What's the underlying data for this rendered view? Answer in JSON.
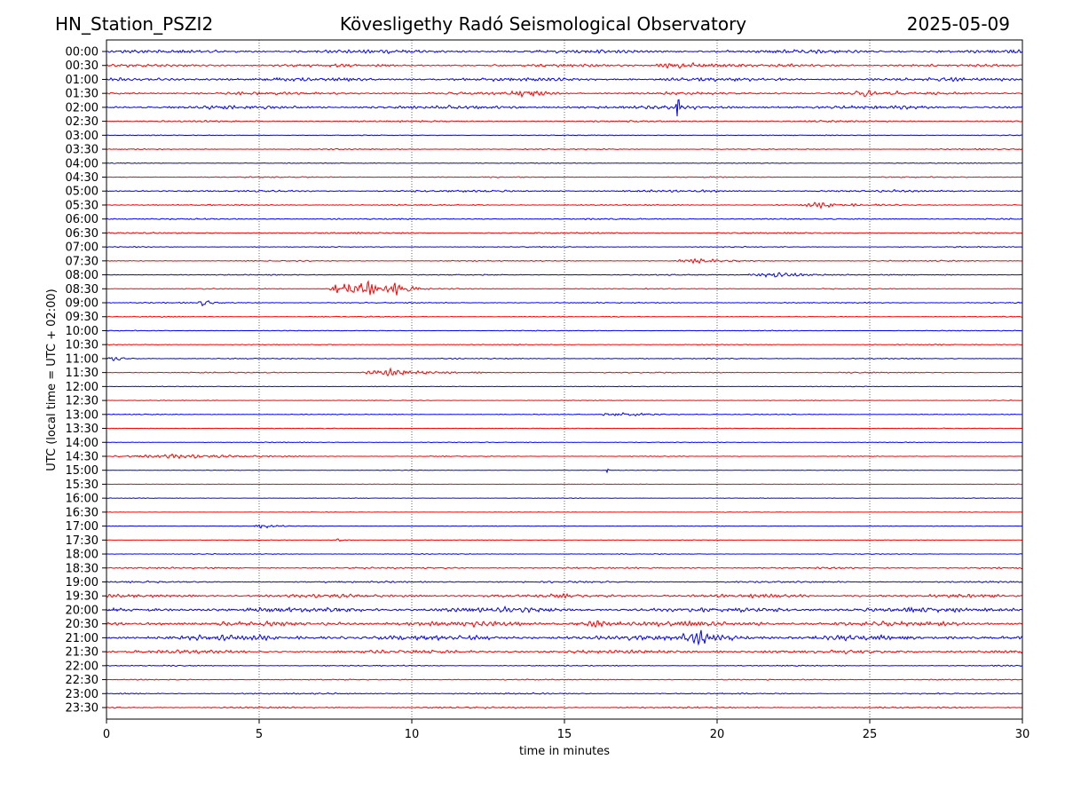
{
  "header": {
    "station": "HN_Station_PSZI2",
    "observatory": "Kövesligethy Radó Seismological Observatory",
    "date": "2025-05-09"
  },
  "chart_data": {
    "type": "line",
    "subtype": "helicorder",
    "xlabel": "time in minutes",
    "ylabel": "UTC (local time = UTC + 02:00)",
    "xlim": [
      0,
      30
    ],
    "xticks": [
      "0",
      "5",
      "10",
      "15",
      "20",
      "25",
      "30"
    ],
    "grid": "vertical dotted at 5-minute ticks",
    "colors": [
      "#0000ff",
      "#ff0000"
    ],
    "rows": [
      {
        "label": "00:00",
        "noise": 2.5
      },
      {
        "label": "00:30",
        "noise": 2.0
      },
      {
        "label": "01:00",
        "noise": 2.5
      },
      {
        "label": "01:30",
        "noise": 2.0
      },
      {
        "label": "02:00",
        "noise": 2.5
      },
      {
        "label": "02:30",
        "noise": 1.2
      },
      {
        "label": "03:00",
        "noise": 0.6
      },
      {
        "label": "03:30",
        "noise": 0.8
      },
      {
        "label": "04:00",
        "noise": 0.6
      },
      {
        "label": "04:30",
        "noise": 0.8
      },
      {
        "label": "05:00",
        "noise": 1.5
      },
      {
        "label": "05:30",
        "noise": 1.0
      },
      {
        "label": "06:00",
        "noise": 1.0
      },
      {
        "label": "06:30",
        "noise": 1.0
      },
      {
        "label": "07:00",
        "noise": 0.7
      },
      {
        "label": "07:30",
        "noise": 0.8
      },
      {
        "label": "08:00",
        "noise": 0.8
      },
      {
        "label": "08:30",
        "noise": 0.7
      },
      {
        "label": "09:00",
        "noise": 0.8
      },
      {
        "label": "09:30",
        "noise": 0.7
      },
      {
        "label": "10:00",
        "noise": 0.6
      },
      {
        "label": "10:30",
        "noise": 0.6
      },
      {
        "label": "11:00",
        "noise": 0.8
      },
      {
        "label": "11:30",
        "noise": 0.8
      },
      {
        "label": "12:00",
        "noise": 0.5
      },
      {
        "label": "12:30",
        "noise": 0.5
      },
      {
        "label": "13:00",
        "noise": 0.6
      },
      {
        "label": "13:30",
        "noise": 0.5
      },
      {
        "label": "14:00",
        "noise": 0.5
      },
      {
        "label": "14:30",
        "noise": 0.6
      },
      {
        "label": "15:00",
        "noise": 0.4
      },
      {
        "label": "15:30",
        "noise": 0.4
      },
      {
        "label": "16:00",
        "noise": 0.4
      },
      {
        "label": "16:30",
        "noise": 0.4
      },
      {
        "label": "17:00",
        "noise": 0.4
      },
      {
        "label": "17:30",
        "noise": 0.4
      },
      {
        "label": "18:00",
        "noise": 0.6
      },
      {
        "label": "18:30",
        "noise": 1.2
      },
      {
        "label": "19:00",
        "noise": 1.2
      },
      {
        "label": "19:30",
        "noise": 2.5
      },
      {
        "label": "20:00",
        "noise": 3.5
      },
      {
        "label": "20:30",
        "noise": 3.5
      },
      {
        "label": "21:00",
        "noise": 3.5
      },
      {
        "label": "21:30",
        "noise": 2.5
      },
      {
        "label": "22:00",
        "noise": 0.8
      },
      {
        "label": "22:30",
        "noise": 0.8
      },
      {
        "label": "23:00",
        "noise": 1.0
      },
      {
        "label": "23:30",
        "noise": 1.2
      }
    ],
    "events": [
      {
        "row": "00:30",
        "minute": 18.8,
        "amp": 4,
        "dur": 0.8
      },
      {
        "row": "01:30",
        "minute": 13.8,
        "amp": 4,
        "dur": 0.6
      },
      {
        "row": "01:30",
        "minute": 24.9,
        "amp": 4,
        "dur": 0.5
      },
      {
        "row": "02:00",
        "minute": 18.7,
        "amp": 25,
        "dur": 0.05
      },
      {
        "row": "08:00",
        "minute": 21.9,
        "amp": 4,
        "dur": 1.0
      },
      {
        "row": "08:30",
        "minute": 7.7,
        "amp": 10,
        "dur": 0.4
      },
      {
        "row": "08:30",
        "minute": 8.1,
        "amp": 5,
        "dur": 0.5
      },
      {
        "row": "08:30",
        "minute": 8.6,
        "amp": 12,
        "dur": 0.5
      },
      {
        "row": "08:30",
        "minute": 9.6,
        "amp": 10,
        "dur": 0.4
      },
      {
        "row": "09:00",
        "minute": 3.2,
        "amp": 5,
        "dur": 0.2
      },
      {
        "row": "11:00",
        "minute": 0.2,
        "amp": 5,
        "dur": 0.3
      },
      {
        "row": "11:30",
        "minute": 9.3,
        "amp": 5,
        "dur": 1.0
      },
      {
        "row": "05:30",
        "minute": 23.5,
        "amp": 3,
        "dur": 0.8
      },
      {
        "row": "07:30",
        "minute": 19.5,
        "amp": 3,
        "dur": 0.8
      },
      {
        "row": "13:00",
        "minute": 17.2,
        "amp": 3,
        "dur": 1.0
      },
      {
        "row": "14:30",
        "minute": 2.2,
        "amp": 3,
        "dur": 2.0
      },
      {
        "row": "15:00",
        "minute": 16.4,
        "amp": 6,
        "dur": 0.05
      },
      {
        "row": "17:00",
        "minute": 5.2,
        "amp": 3,
        "dur": 0.4
      },
      {
        "row": "17:30",
        "minute": 7.7,
        "amp": 3,
        "dur": 0.2
      },
      {
        "row": "20:30",
        "minute": 15.9,
        "amp": 6,
        "dur": 0.5
      },
      {
        "row": "21:00",
        "minute": 19.6,
        "amp": 7,
        "dur": 0.8
      }
    ]
  }
}
